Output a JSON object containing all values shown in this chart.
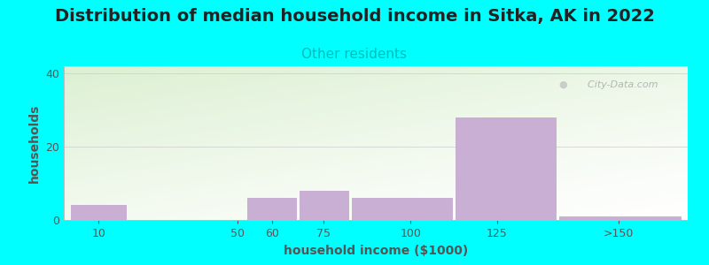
{
  "title": "Distribution of median household income in Sitka, AK in 2022",
  "subtitle": "Other residents",
  "xlabel": "household income ($1000)",
  "ylabel": "households",
  "background_color": "#00FFFF",
  "bar_color": "#c9afd4",
  "bar_edge_color": "#c0a0cc",
  "values": [
    4,
    0,
    6,
    8,
    6,
    28,
    1
  ],
  "bar_lefts": [
    2,
    20,
    53,
    68,
    83,
    113,
    143
  ],
  "bar_rights": [
    18,
    48,
    67,
    82,
    112,
    142,
    178
  ],
  "xlim": [
    0,
    180
  ],
  "ylim": [
    0,
    42
  ],
  "yticks": [
    0,
    20,
    40
  ],
  "xtick_labels": [
    "10",
    "50",
    "60",
    "75",
    "100",
    "125",
    ">150"
  ],
  "xtick_positions": [
    10,
    50,
    60,
    75,
    100,
    125,
    160
  ],
  "title_fontsize": 14,
  "subtitle_fontsize": 11,
  "axis_label_fontsize": 10,
  "tick_fontsize": 9,
  "watermark_text": "  City-Data.com",
  "subtitle_color": "#00BBBB",
  "title_color": "#222222",
  "tick_color": "#555555",
  "grid_color": "#cccccc",
  "ylabel_color": "#555555",
  "xlabel_color": "#555555"
}
